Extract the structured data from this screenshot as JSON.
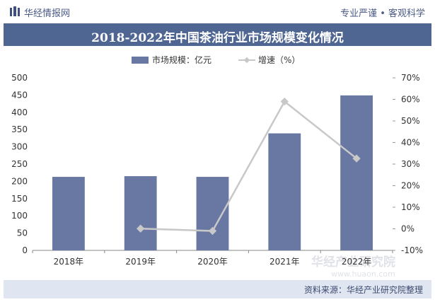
{
  "header": {
    "brand": "华经情报网",
    "slogan": "专业严谨 • 客观科学"
  },
  "title": "2018-2022年中国茶油行业市场规模变化情况",
  "footer": {
    "source": "资料来源：华经产业研究院整理"
  },
  "watermark": {
    "name": "华经产业研究院",
    "url": "www.huaon.com"
  },
  "colors": {
    "bar": "#6878a3",
    "line": "#c8c8c8",
    "titlebar": "#4f6592",
    "footer": "#dfe5f1"
  },
  "chart_data": {
    "type": "bar",
    "categories": [
      "2018年",
      "2019年",
      "2020年",
      "2021年",
      "2022年"
    ],
    "series": [
      {
        "name": "市场规模：亿元",
        "type": "bar",
        "axis": "left",
        "values": [
          213,
          215,
          213,
          339,
          449
        ]
      },
      {
        "name": "增速（%）",
        "type": "line",
        "axis": "right",
        "values": [
          null,
          0.1,
          -1.0,
          59.0,
          32.6
        ]
      }
    ],
    "y_left": {
      "min": 0,
      "max": 500,
      "step": 50,
      "ticks": [
        "0",
        "50",
        "100",
        "150",
        "200",
        "250",
        "300",
        "350",
        "400",
        "450",
        "500"
      ]
    },
    "y_right": {
      "min": -10,
      "max": 70,
      "step": 10,
      "ticks": [
        "-10%",
        "0%",
        "10%",
        "20%",
        "30%",
        "40%",
        "50%",
        "60%",
        "70%"
      ]
    },
    "legend_position": "top-center",
    "grid": false
  }
}
